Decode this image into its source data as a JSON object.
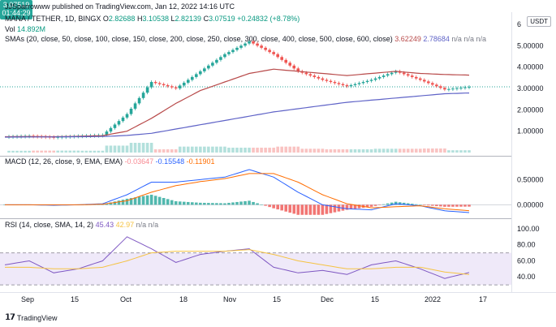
{
  "header": {
    "publisher_line": "JJSparrowww published on TradingView.com, Jan 12, 2022 14:16 UTC",
    "symbol": "MANA / TETHER, 1D, BINGX",
    "ohlc": {
      "o_label": "O",
      "o": "2.82688",
      "h_label": "H",
      "h": "3.10538",
      "l_label": "L",
      "l": "2.82139",
      "c_label": "C",
      "c": "3.07519",
      "change": "+0.24832 (+8.78%)"
    },
    "vol_label": "Vol",
    "vol_value": "14.892M",
    "sma_label": "SMAs (20, close, 50, close, 100, close, 150, close, 200, close, 250, close, 300, close, 400, close, 500, close, 600, close)",
    "sma_value1": "3.62249",
    "sma_value2": "2.78684",
    "sma_na": "n/a  n/a  n/a"
  },
  "price_badge": {
    "price": "3.07519",
    "countdown": "01:44:29"
  },
  "currency_badge": "USDT",
  "macd_legend": {
    "label": "MACD (12, 26, close, 9, EMA, EMA)",
    "hist": "-0.03647",
    "macd": "-0.15548",
    "signal": "-0.11901"
  },
  "rsi_legend": {
    "label": "RSI (14, close, SMA, 14, 2)",
    "rsi": "45.43",
    "sma": "42.97",
    "na": "n/a  n/a"
  },
  "footer": {
    "brand": "TradingView"
  },
  "colors": {
    "up": "#26a69a",
    "down": "#ef5350",
    "sma20": "#b84a4a",
    "sma50": "#5f63c7",
    "macd": "#2962ff",
    "signal": "#ff6d00",
    "rsi": "#7e57c2",
    "rsi_ma": "#f5c342"
  },
  "chart_data": {
    "type": "line",
    "x_ticks": [
      "Sep",
      "15",
      "Oct",
      "18",
      "Nov",
      "15",
      "Dec",
      "15",
      "2022",
      "17"
    ],
    "price_axis": {
      "ticks": [
        "1.00000",
        "2.00000",
        "3.00000",
        "4.00000",
        "5.00000",
        "6"
      ],
      "ylim": [
        0,
        6.3
      ]
    },
    "price_series": {
      "name": "MANA / TETHER",
      "x": [
        "Sep 1",
        "Sep 15",
        "Oct 1",
        "Oct 18",
        "Oct 28",
        "Oct 30",
        "Nov 1",
        "Nov 10",
        "Nov 15",
        "Nov 20",
        "Nov 25",
        "Dec 1",
        "Dec 5",
        "Dec 10",
        "Dec 15",
        "Dec 20",
        "Dec 25",
        "Jan 1",
        "Jan 5",
        "Jan 12"
      ],
      "close": [
        0.75,
        0.78,
        0.72,
        0.78,
        0.82,
        1.8,
        3.3,
        3.0,
        3.8,
        4.6,
        5.2,
        4.6,
        3.8,
        3.4,
        3.1,
        3.4,
        3.8,
        3.4,
        2.95,
        3.07519
      ]
    },
    "sma_series": [
      {
        "values": [
          0.74,
          0.75,
          0.74,
          0.76,
          0.79,
          1.0,
          1.6,
          2.3,
          2.9,
          3.3,
          3.7,
          3.9,
          3.8,
          3.7,
          3.6,
          3.7,
          3.8,
          3.7,
          3.65,
          3.62249
        ]
      },
      {
        "values": [
          0.72,
          0.73,
          0.73,
          0.74,
          0.75,
          0.8,
          0.9,
          1.1,
          1.3,
          1.5,
          1.7,
          1.9,
          2.05,
          2.2,
          2.35,
          2.45,
          2.55,
          2.65,
          2.75,
          2.78684
        ]
      }
    ],
    "macd_axis": {
      "ticks": [
        "0.50000",
        "0.00000"
      ],
      "ylim": [
        -0.22,
        0.78
      ]
    },
    "macd_series": {
      "macd": [
        0.0,
        0.0,
        -0.01,
        0.0,
        0.02,
        0.2,
        0.45,
        0.45,
        0.5,
        0.55,
        0.7,
        0.55,
        0.25,
        0.0,
        -0.08,
        -0.1,
        0.02,
        -0.02,
        -0.12,
        -0.15548
      ],
      "signal": [
        0.0,
        0.0,
        0.0,
        0.0,
        0.01,
        0.08,
        0.25,
        0.38,
        0.46,
        0.52,
        0.62,
        0.62,
        0.45,
        0.2,
        0.02,
        -0.06,
        -0.04,
        -0.02,
        -0.08,
        -0.11901
      ]
    },
    "rsi_axis": {
      "ticks": [
        "100.00",
        "80.00",
        "60.00",
        "40.00"
      ],
      "ylim": [
        25,
        102
      ],
      "bands": [
        30,
        70
      ]
    },
    "rsi_series": {
      "rsi": [
        55,
        60,
        45,
        50,
        60,
        90,
        75,
        58,
        68,
        72,
        75,
        52,
        45,
        48,
        43,
        55,
        60,
        50,
        38,
        45.43
      ],
      "sma": [
        52,
        52,
        50,
        50,
        52,
        60,
        70,
        72,
        72,
        72,
        74,
        68,
        60,
        55,
        50,
        50,
        52,
        52,
        46,
        42.97
      ]
    }
  }
}
